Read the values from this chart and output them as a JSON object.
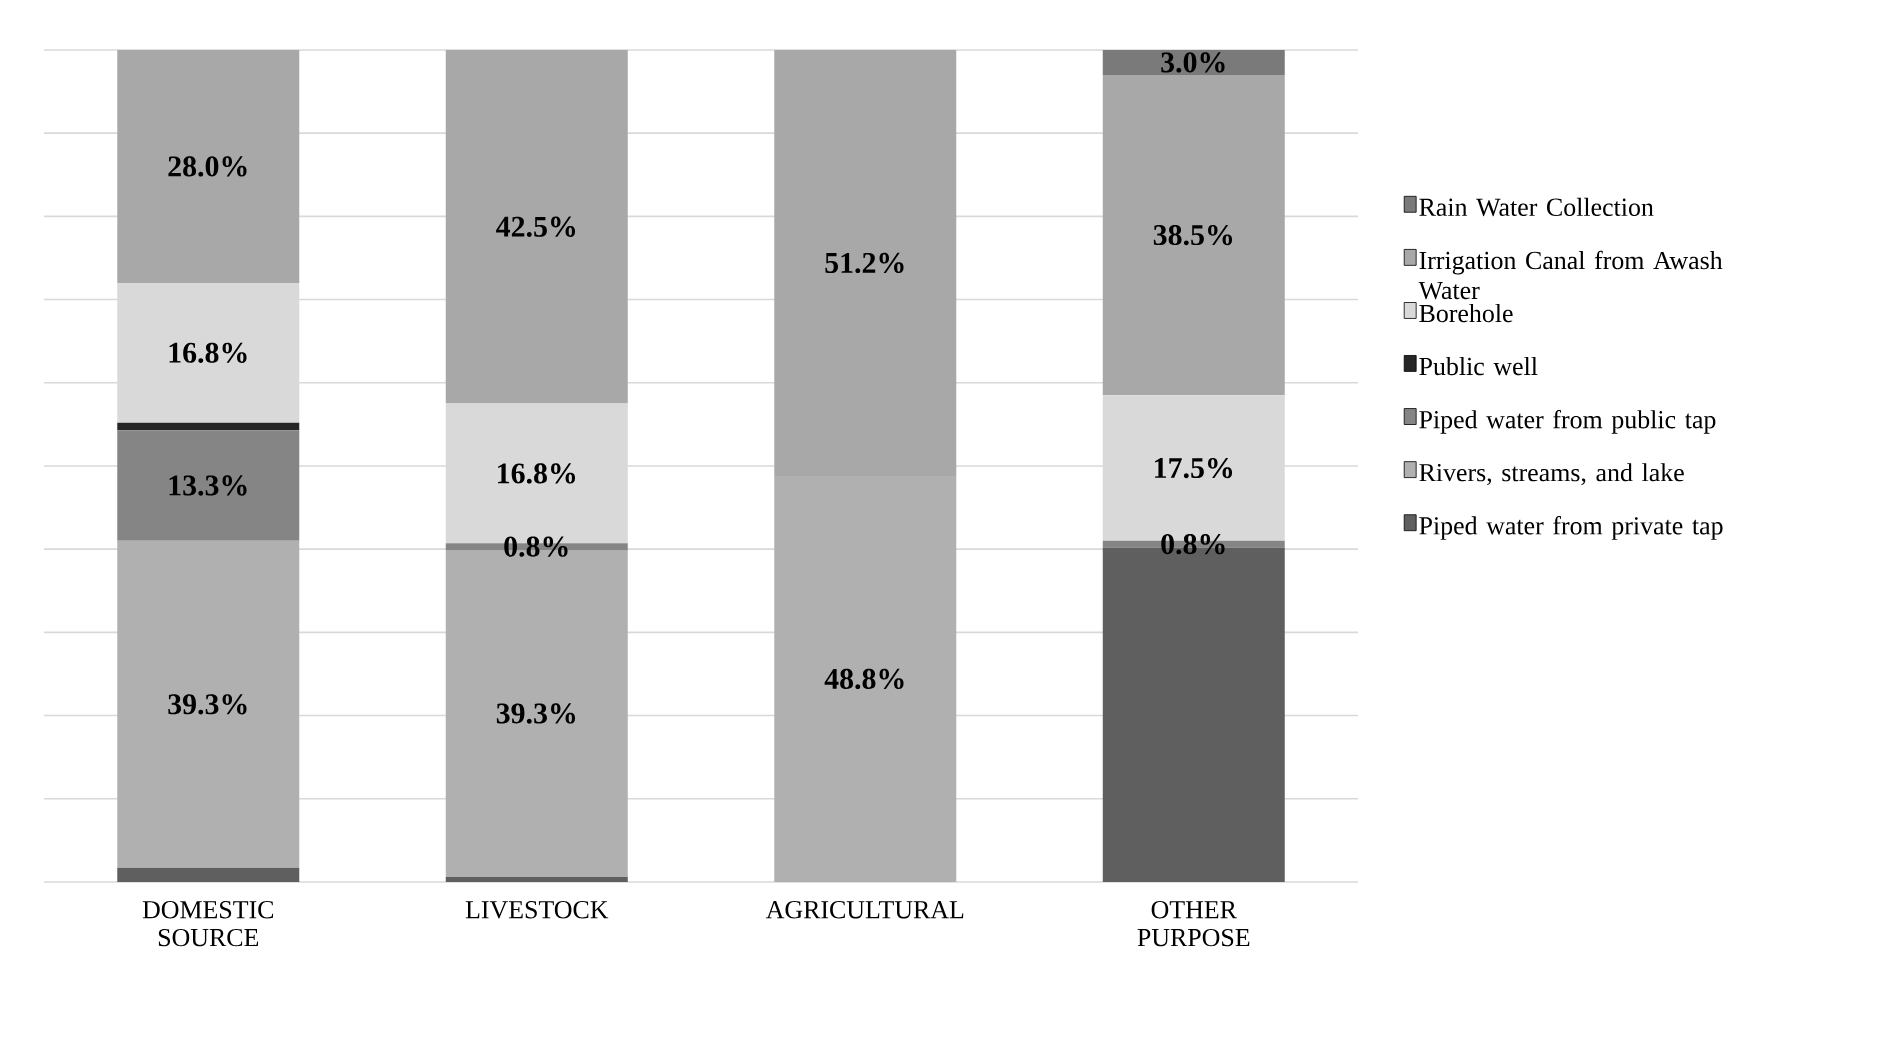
{
  "chart_data": {
    "type": "bar",
    "stacked": true,
    "categories": [
      "DOMESTIC SOURCE",
      "LIVESTOCK",
      "AGRICULTURAL",
      "OTHER PURPOSE"
    ],
    "series": [
      {
        "name": "Piped water from private tap",
        "color": "#5f5f5f",
        "values": [
          1.7,
          0.6,
          null,
          40.2
        ],
        "value_labels": [
          null,
          null,
          null,
          null
        ]
      },
      {
        "name": "Rivers, streams, and lake",
        "color": "#b0b0b0",
        "values": [
          39.3,
          39.3,
          48.8,
          null
        ],
        "value_labels": [
          "39.3%",
          "39.3%",
          "48.8%",
          null
        ]
      },
      {
        "name": "Piped water from public tap",
        "color": "#858585",
        "values": [
          13.3,
          0.8,
          null,
          0.8
        ],
        "value_labels": [
          "13.3%",
          "0.8%",
          null,
          "0.8%"
        ]
      },
      {
        "name": "Public well",
        "color": "#262626",
        "values": [
          0.9,
          null,
          null,
          null
        ],
        "value_labels": [
          null,
          null,
          null,
          null
        ]
      },
      {
        "name": "Borehole",
        "color": "#d9d9d9",
        "values": [
          16.8,
          16.8,
          null,
          17.5
        ],
        "value_labels": [
          "16.8%",
          "16.8%",
          null,
          "17.5%"
        ]
      },
      {
        "name": "Irrigation Canal from Awash Water",
        "color": "#a8a8a8",
        "values": [
          28.0,
          42.5,
          51.2,
          38.5
        ],
        "value_labels": [
          "28.0%",
          "42.5%",
          "51.2%",
          "38.5%"
        ]
      },
      {
        "name": "Rain Water Collection",
        "color": "#7a7a7a",
        "values": [
          null,
          null,
          null,
          3.0
        ],
        "value_labels": [
          null,
          null,
          null,
          "3.0%"
        ]
      }
    ],
    "ylim": [
      0,
      100
    ],
    "tick_labels": "x",
    "grid": "y",
    "legend": "right"
  }
}
